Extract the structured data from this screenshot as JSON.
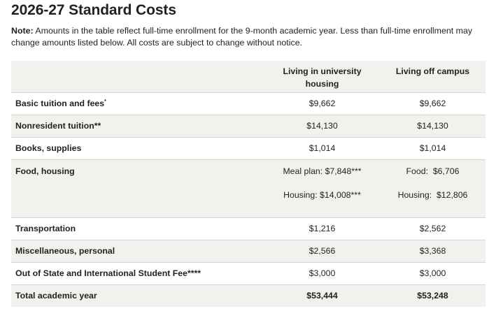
{
  "title": "2026-27 Standard Costs",
  "note": {
    "label": "Note:",
    "text": " Amounts in the table reflect full-time enrollment for the 9-month academic year. Less than full-time enrollment may change amounts listed below. All costs are subject to change without notice."
  },
  "table": {
    "headers": [
      "",
      "Living in university housing",
      "Living off campus"
    ],
    "rows": {
      "tuition": {
        "label": "Basic tuition and fees",
        "mark": "*",
        "in": "$9,662",
        "off": "$9,662"
      },
      "nonresident": {
        "label": "Nonresident tuition**",
        "in": "$14,130",
        "off": "$14,130"
      },
      "books": {
        "label": "Books, supplies",
        "in": "$1,014",
        "off": "$1,014"
      },
      "food": {
        "label": "Food, housing",
        "in_1": "Meal plan: $7,848***",
        "in_2": "Housing: $14,008***",
        "off_1": "Food:  $6,706",
        "off_2": "Housing:  $12,806"
      },
      "transportation": {
        "label": "Transportation",
        "in": "$1,216",
        "off": "$2,562"
      },
      "misc": {
        "label": "Miscellaneous, personal",
        "in": "$2,566",
        "off": "$3,368"
      },
      "fee": {
        "label": "Out of State and International Student Fee****",
        "in": "$3,000",
        "off": "$3,000"
      },
      "total": {
        "label": "Total academic year",
        "in": "$53,444",
        "off": "$53,248"
      }
    }
  },
  "colors": {
    "shade": "#f2f1ee",
    "border": "#d8d6d1",
    "text": "#222222"
  }
}
